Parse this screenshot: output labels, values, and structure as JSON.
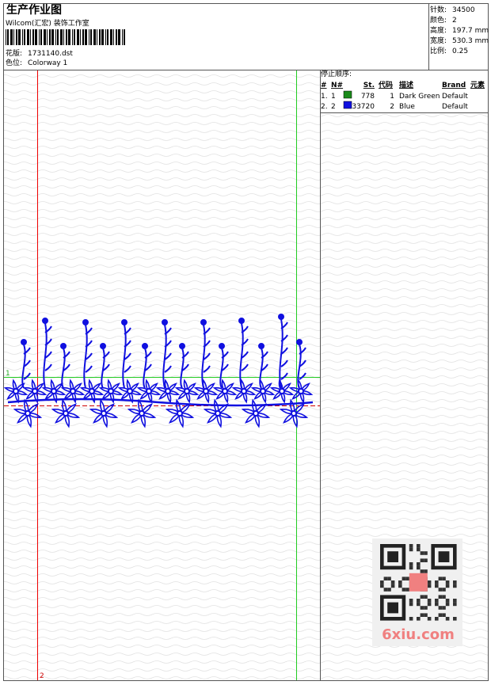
{
  "header": {
    "title": "生产作业图",
    "company": "Wilcom(汇宏) 装饰工作室",
    "fields": [
      {
        "label": "花版:",
        "value": "1731140.dst"
      },
      {
        "label": "色位:",
        "value": "Colorway 1"
      }
    ]
  },
  "stats": [
    {
      "label": "针数:",
      "value": "34500"
    },
    {
      "label": "颜色:",
      "value": "2"
    },
    {
      "label": "高度:",
      "value": "197.7 mm"
    },
    {
      "label": "宽度:",
      "value": "530.3 mm"
    },
    {
      "label": "比例:",
      "value": "0.25"
    }
  ],
  "stop_sequence": {
    "title": "停止顺序:",
    "columns": [
      "#",
      "N#",
      "St.",
      "代码",
      "描述",
      "Brand",
      "元素"
    ],
    "rows": [
      {
        "index": "1.",
        "needle": "1",
        "color": "#1a8a1a",
        "stitches": "778",
        "code": "1",
        "description": "Dark Green",
        "brand": "Default"
      },
      {
        "index": "2.",
        "needle": "2",
        "color": "#1010e0",
        "stitches": "33720",
        "code": "2",
        "description": "Blue",
        "brand": "Default"
      }
    ]
  },
  "markers": {
    "start": "1",
    "end": "2"
  },
  "watermark": "6xiu.com"
}
